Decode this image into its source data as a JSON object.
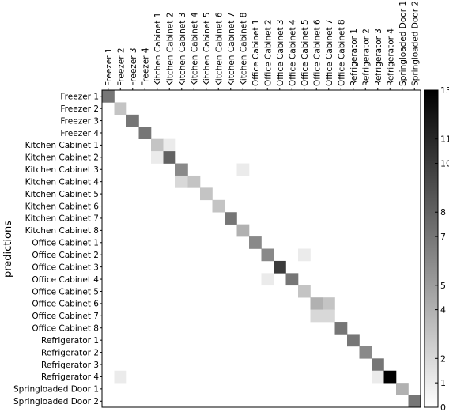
{
  "chart_data": {
    "type": "heatmap",
    "title": "",
    "xlabel": "",
    "ylabel": "predictions",
    "x_categories": [
      "Freezer 1",
      "Freezer 2",
      "Freezer 3",
      "Freezer 4",
      "Kitchen Cabinet 1",
      "Kitchen Cabinet 2",
      "Kitchen Cabinet 3",
      "Kitchen Cabinet 4",
      "Kitchen Cabinet 5",
      "Kitchen Cabinet 6",
      "Kitchen Cabinet 7",
      "Kitchen Cabinet 8",
      "Office Cabinet 1",
      "Office Cabinet 2",
      "Office Cabinet 3",
      "Office Cabinet 4",
      "Office Cabinet 5",
      "Office Cabinet 6",
      "Office Cabinet 7",
      "Office Cabinet 8",
      "Refrigerator 1",
      "Refrigerator 2",
      "Refrigerator 3",
      "Refrigerator 4",
      "Springloaded Door 1",
      "Springloaded Door 2"
    ],
    "y_categories": [
      "Freezer 1",
      "Freezer 2",
      "Freezer 3",
      "Freezer 4",
      "Kitchen Cabinet 1",
      "Kitchen Cabinet 2",
      "Kitchen Cabinet 3",
      "Kitchen Cabinet 4",
      "Kitchen Cabinet 5",
      "Kitchen Cabinet 6",
      "Kitchen Cabinet 7",
      "Kitchen Cabinet 8",
      "Office Cabinet 1",
      "Office Cabinet 2",
      "Office Cabinet 3",
      "Office Cabinet 4",
      "Office Cabinet 5",
      "Office Cabinet 6",
      "Office Cabinet 7",
      "Office Cabinet 8",
      "Refrigerator 1",
      "Refrigerator 2",
      "Refrigerator 3",
      "Refrigerator 4",
      "Springloaded Door 1",
      "Springloaded Door 2"
    ],
    "cells": [
      {
        "row": 0,
        "col": 0,
        "value": 7
      },
      {
        "row": 1,
        "col": 1,
        "value": 3
      },
      {
        "row": 2,
        "col": 2,
        "value": 7
      },
      {
        "row": 3,
        "col": 3,
        "value": 7
      },
      {
        "row": 4,
        "col": 4,
        "value": 3
      },
      {
        "row": 4,
        "col": 5,
        "value": 1
      },
      {
        "row": 5,
        "col": 4,
        "value": 1
      },
      {
        "row": 5,
        "col": 5,
        "value": 8
      },
      {
        "row": 6,
        "col": 6,
        "value": 6
      },
      {
        "row": 6,
        "col": 11,
        "value": 1
      },
      {
        "row": 7,
        "col": 6,
        "value": 2
      },
      {
        "row": 7,
        "col": 7,
        "value": 3
      },
      {
        "row": 8,
        "col": 8,
        "value": 3
      },
      {
        "row": 9,
        "col": 9,
        "value": 3
      },
      {
        "row": 10,
        "col": 10,
        "value": 7
      },
      {
        "row": 11,
        "col": 11,
        "value": 4
      },
      {
        "row": 12,
        "col": 12,
        "value": 6
      },
      {
        "row": 13,
        "col": 13,
        "value": 6
      },
      {
        "row": 13,
        "col": 16,
        "value": 1
      },
      {
        "row": 14,
        "col": 14,
        "value": 10
      },
      {
        "row": 15,
        "col": 13,
        "value": 1
      },
      {
        "row": 15,
        "col": 15,
        "value": 7
      },
      {
        "row": 16,
        "col": 16,
        "value": 3
      },
      {
        "row": 17,
        "col": 17,
        "value": 4
      },
      {
        "row": 17,
        "col": 18,
        "value": 3
      },
      {
        "row": 18,
        "col": 17,
        "value": 2
      },
      {
        "row": 18,
        "col": 18,
        "value": 2
      },
      {
        "row": 19,
        "col": 19,
        "value": 7
      },
      {
        "row": 20,
        "col": 20,
        "value": 7
      },
      {
        "row": 21,
        "col": 21,
        "value": 6
      },
      {
        "row": 22,
        "col": 22,
        "value": 7
      },
      {
        "row": 23,
        "col": 1,
        "value": 1
      },
      {
        "row": 23,
        "col": 22,
        "value": 1
      },
      {
        "row": 23,
        "col": 23,
        "value": 13
      },
      {
        "row": 24,
        "col": 24,
        "value": 4
      },
      {
        "row": 25,
        "col": 25,
        "value": 7
      }
    ],
    "colorbar": {
      "min": 0,
      "max": 13,
      "ticks": [
        0,
        1,
        2,
        4,
        5,
        7,
        8,
        10,
        11,
        13
      ],
      "colormap": "gray_r",
      "low_color": "#ffffff",
      "high_color": "#000000"
    },
    "grid": false
  }
}
